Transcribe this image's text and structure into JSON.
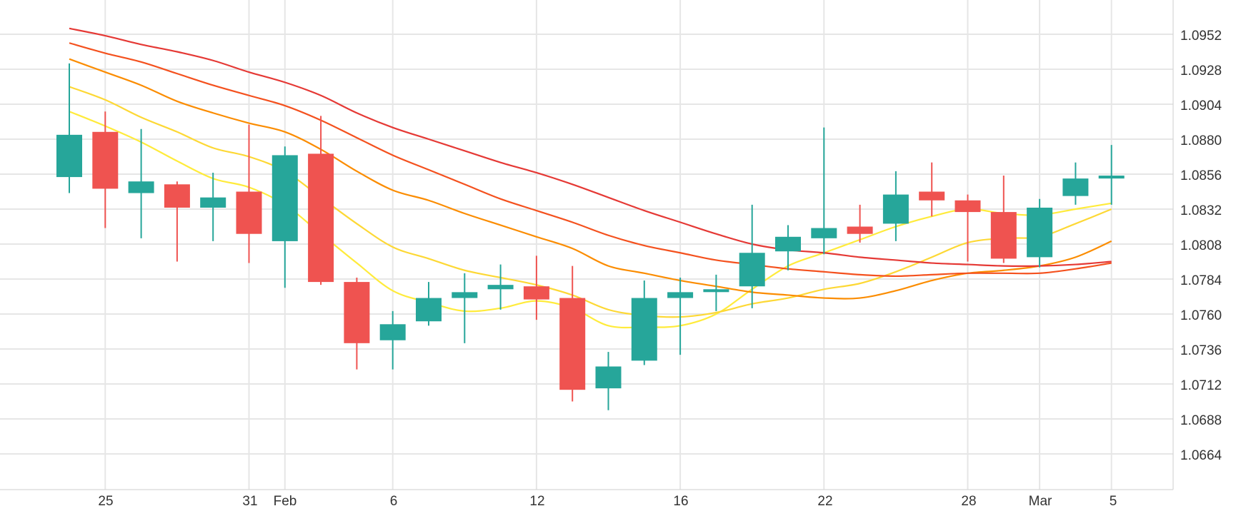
{
  "chart_data": {
    "type": "candlestick",
    "x_tick_labels": [
      "25",
      "31",
      "Feb",
      "6",
      "12",
      "16",
      "22",
      "28",
      "Mar",
      "5"
    ],
    "y_tick_labels": [
      "1.0952",
      "1.0928",
      "1.0904",
      "1.0880",
      "1.0856",
      "1.0832",
      "1.0808",
      "1.0784",
      "1.0760",
      "1.0736",
      "1.0712",
      "1.0688",
      "1.0664"
    ],
    "ylim": [
      1.0642,
      1.0976
    ],
    "grid": true,
    "colors": {
      "up": "#26a69a",
      "down": "#ef5350",
      "grid": "#e6e6e6",
      "axis_text": "#333333"
    },
    "candles": [
      {
        "date": "2024-01-24",
        "open": 1.0854,
        "high": 1.0932,
        "low": 1.0843,
        "close": 1.0883
      },
      {
        "date": "2024-01-25",
        "open": 1.0885,
        "high": 1.0899,
        "low": 1.0819,
        "close": 1.0846
      },
      {
        "date": "2024-01-26",
        "open": 1.0843,
        "high": 1.0887,
        "low": 1.0812,
        "close": 1.0851
      },
      {
        "date": "2024-01-29",
        "open": 1.0849,
        "high": 1.0851,
        "low": 1.0796,
        "close": 1.0833
      },
      {
        "date": "2024-01-30",
        "open": 1.0833,
        "high": 1.0857,
        "low": 1.081,
        "close": 1.084
      },
      {
        "date": "2024-01-31",
        "open": 1.0844,
        "high": 1.089,
        "low": 1.0795,
        "close": 1.0815
      },
      {
        "date": "2024-02-01",
        "open": 1.081,
        "high": 1.0875,
        "low": 1.0778,
        "close": 1.0869
      },
      {
        "date": "2024-02-02",
        "open": 1.087,
        "high": 1.0896,
        "low": 1.078,
        "close": 1.0782
      },
      {
        "date": "2024-02-05",
        "open": 1.0782,
        "high": 1.0785,
        "low": 1.0722,
        "close": 1.074
      },
      {
        "date": "2024-02-06",
        "open": 1.0742,
        "high": 1.0762,
        "low": 1.0722,
        "close": 1.0753
      },
      {
        "date": "2024-02-07",
        "open": 1.0755,
        "high": 1.0782,
        "low": 1.0752,
        "close": 1.0771
      },
      {
        "date": "2024-02-08",
        "open": 1.0771,
        "high": 1.0788,
        "low": 1.074,
        "close": 1.0775
      },
      {
        "date": "2024-02-09",
        "open": 1.0777,
        "high": 1.0794,
        "low": 1.0763,
        "close": 1.078
      },
      {
        "date": "2024-02-12",
        "open": 1.0779,
        "high": 1.08,
        "low": 1.0756,
        "close": 1.077
      },
      {
        "date": "2024-02-13",
        "open": 1.0771,
        "high": 1.0793,
        "low": 1.07,
        "close": 1.0708
      },
      {
        "date": "2024-02-14",
        "open": 1.0709,
        "high": 1.0734,
        "low": 1.0694,
        "close": 1.0724
      },
      {
        "date": "2024-02-15",
        "open": 1.0728,
        "high": 1.0783,
        "low": 1.0725,
        "close": 1.0771
      },
      {
        "date": "2024-02-16",
        "open": 1.0771,
        "high": 1.0785,
        "low": 1.0732,
        "close": 1.0775
      },
      {
        "date": "2024-02-19",
        "open": 1.0776,
        "high": 1.0787,
        "low": 1.0762,
        "close": 1.0777
      },
      {
        "date": "2024-02-20",
        "open": 1.0779,
        "high": 1.0835,
        "low": 1.0764,
        "close": 1.0802
      },
      {
        "date": "2024-02-21",
        "open": 1.0803,
        "high": 1.0821,
        "low": 1.079,
        "close": 1.0813
      },
      {
        "date": "2024-02-22",
        "open": 1.0812,
        "high": 1.0888,
        "low": 1.0801,
        "close": 1.0819
      },
      {
        "date": "2024-02-23",
        "open": 1.082,
        "high": 1.0835,
        "low": 1.0809,
        "close": 1.0815
      },
      {
        "date": "2024-02-26",
        "open": 1.0822,
        "high": 1.0858,
        "low": 1.081,
        "close": 1.0842
      },
      {
        "date": "2024-02-27",
        "open": 1.0844,
        "high": 1.0864,
        "low": 1.0827,
        "close": 1.0838
      },
      {
        "date": "2024-02-28",
        "open": 1.0838,
        "high": 1.0842,
        "low": 1.0796,
        "close": 1.083
      },
      {
        "date": "2024-02-29",
        "open": 1.083,
        "high": 1.0855,
        "low": 1.0795,
        "close": 1.0798
      },
      {
        "date": "2024-03-01",
        "open": 1.0799,
        "high": 1.0839,
        "low": 1.0792,
        "close": 1.0833
      },
      {
        "date": "2024-03-04",
        "open": 1.0841,
        "high": 1.0864,
        "low": 1.0835,
        "close": 1.0853
      },
      {
        "date": "2024-03-05",
        "open": 1.0853,
        "high": 1.0876,
        "low": 1.0835,
        "close": 1.0855
      }
    ],
    "moving_averages": [
      {
        "color": "#ffeb3b",
        "values": [
          1.0899,
          1.0889,
          1.0878,
          1.0865,
          1.0853,
          1.0847,
          1.0835,
          1.0815,
          1.0795,
          1.0776,
          1.0768,
          1.0762,
          1.0764,
          1.0769,
          1.0764,
          1.0752,
          1.0751,
          1.0752,
          1.076,
          1.0777,
          1.0793,
          1.0802,
          1.0811,
          1.082,
          1.0827,
          1.0832,
          1.0829,
          1.0828,
          1.0832,
          1.0836
        ]
      },
      {
        "color": "#fdd835",
        "values": [
          1.0916,
          1.0907,
          1.0895,
          1.0885,
          1.0874,
          1.0868,
          1.0858,
          1.084,
          1.0822,
          1.0806,
          1.0798,
          1.079,
          1.0785,
          1.078,
          1.0773,
          1.0763,
          1.0759,
          1.0758,
          1.0761,
          1.0767,
          1.0771,
          1.0777,
          1.0781,
          1.0789,
          1.0799,
          1.0809,
          1.0812,
          1.0813,
          1.0822,
          1.0832
        ]
      },
      {
        "color": "#fb8c00",
        "values": [
          1.0935,
          1.0926,
          1.0917,
          1.0906,
          1.0898,
          1.0891,
          1.0885,
          1.0873,
          1.0858,
          1.0845,
          1.0838,
          1.0829,
          1.0821,
          1.0813,
          1.0805,
          1.0793,
          1.0788,
          1.0783,
          1.0779,
          1.0775,
          1.0773,
          1.0771,
          1.0771,
          1.0776,
          1.0783,
          1.0788,
          1.079,
          1.0793,
          1.0799,
          1.081
        ]
      },
      {
        "color": "#f4511e",
        "values": [
          1.0946,
          1.0939,
          1.0933,
          1.0925,
          1.0917,
          1.091,
          1.0903,
          1.0893,
          1.0881,
          1.0869,
          1.0859,
          1.0849,
          1.0839,
          1.0831,
          1.0823,
          1.0814,
          1.0807,
          1.0802,
          1.0797,
          1.0794,
          1.0791,
          1.0789,
          1.0787,
          1.0786,
          1.0787,
          1.0788,
          1.0788,
          1.0788,
          1.0791,
          1.0795
        ]
      },
      {
        "color": "#e53935",
        "values": [
          1.0956,
          1.0951,
          1.0945,
          1.094,
          1.0934,
          1.0926,
          1.0919,
          1.091,
          1.0898,
          1.0888,
          1.088,
          1.0872,
          1.0864,
          1.0857,
          1.0849,
          1.084,
          1.0831,
          1.0823,
          1.0815,
          1.0808,
          1.0804,
          1.0802,
          1.0799,
          1.0797,
          1.0795,
          1.0794,
          1.0793,
          1.0793,
          1.0794,
          1.0796
        ]
      }
    ]
  }
}
